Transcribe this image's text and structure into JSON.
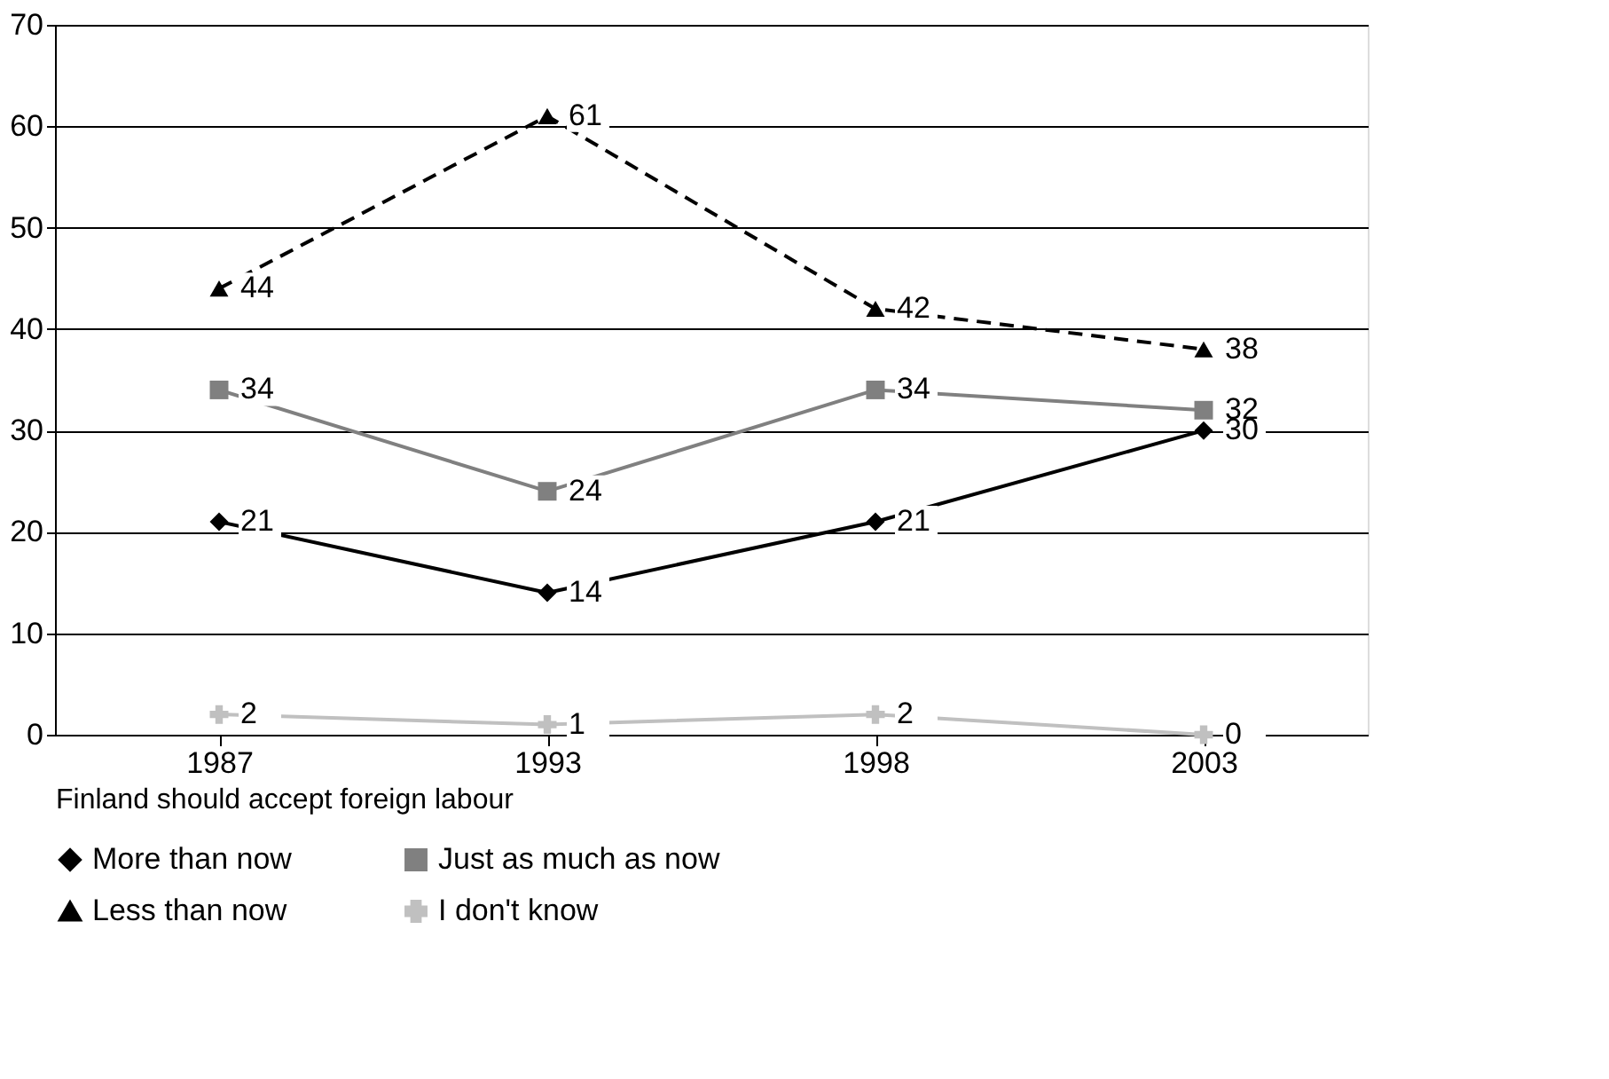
{
  "chart_data": {
    "type": "line",
    "xlabel": "Finland should accept foreign labour",
    "categories": [
      "1987",
      "1993",
      "1998",
      "2003"
    ],
    "series": [
      {
        "name": "More than now",
        "color": "#000000",
        "values": [
          21,
          14,
          21,
          30
        ],
        "marker": "diamond",
        "line_style": "solid"
      },
      {
        "name": "Just as much as now",
        "color": "#808080",
        "values": [
          34,
          24,
          34,
          32
        ],
        "marker": "square",
        "line_style": "solid"
      },
      {
        "name": "Less than now",
        "color": "#000000",
        "values": [
          44,
          61,
          42,
          38
        ],
        "marker": "triangle",
        "line_style": "dashed"
      },
      {
        "name": "I don't know",
        "color": "#c0c0c0",
        "values": [
          2,
          1,
          2,
          0
        ],
        "marker": "cross",
        "line_style": "solid"
      }
    ],
    "ylim": [
      0,
      70
    ],
    "yticks": [
      0,
      10,
      20,
      30,
      40,
      50,
      60,
      70
    ],
    "grid": "y",
    "legend": "bottom",
    "data_labels": true
  }
}
